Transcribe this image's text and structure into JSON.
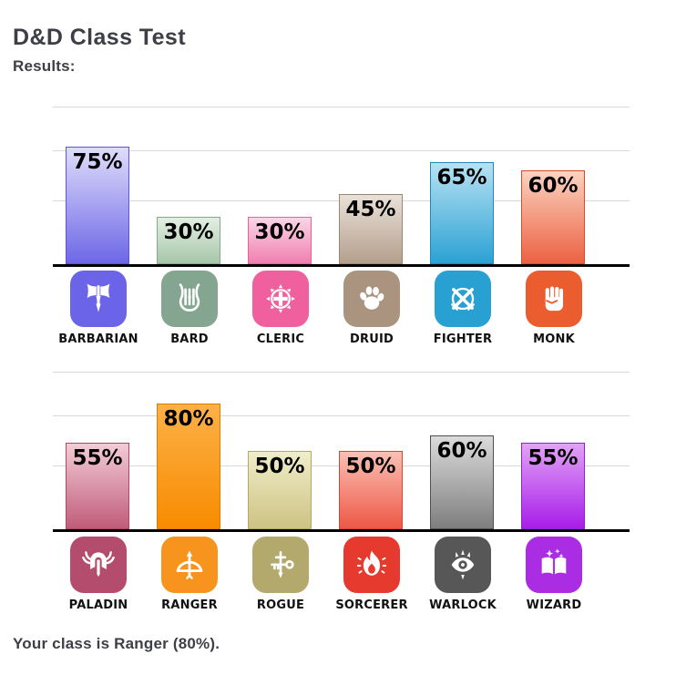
{
  "header": {
    "title": "D&D Class Test",
    "results_label": "Results:"
  },
  "footer": {
    "conclusion": "Your class is Ranger (80%)."
  },
  "theme": {
    "text_dark": "#3e3e47",
    "label_black": "#111111",
    "gridline": "#d8d8d8",
    "axis_line": "#000000",
    "background": "#ffffff"
  },
  "chart_data": [
    {
      "type": "bar",
      "group": "classes-a",
      "categories": [
        "BARBARIAN",
        "BARD",
        "CLERIC",
        "DRUID",
        "FIGHTER",
        "MONK"
      ],
      "values": [
        75,
        30,
        30,
        45,
        65,
        60
      ],
      "value_labels": [
        "75%",
        "30%",
        "30%",
        "45%",
        "65%",
        "60%"
      ],
      "unit": "percent",
      "ylim": [
        0,
        100
      ],
      "grid": true,
      "gridline_values": [
        40,
        72,
        100
      ],
      "legend": "none",
      "icons": [
        "double-axe-icon",
        "lyre-icon",
        "holy-cross-icon",
        "paw-icon",
        "crossed-swords-icon",
        "fist-icon"
      ],
      "icon_colors": [
        "#6b63e8",
        "#84a690",
        "#f0609f",
        "#aa9480",
        "#29a0d2",
        "#eb5c2e"
      ],
      "bar_colors_top": [
        "#dfddfa",
        "#e3efe1",
        "#fad6e6",
        "#e9e1d9",
        "#b7e2f3",
        "#fbd3c1"
      ],
      "bar_colors_bottom": [
        "#6d67e7",
        "#a6c6aa",
        "#f07fb1",
        "#b49f8c",
        "#2ba1d3",
        "#ec6142"
      ],
      "bar_border_colors": [
        "#5d57cf",
        "#87a88e",
        "#e9619c",
        "#9b8673",
        "#2187b6",
        "#d34e2e"
      ]
    },
    {
      "type": "bar",
      "group": "classes-b",
      "categories": [
        "PALADIN",
        "RANGER",
        "ROGUE",
        "SORCERER",
        "WARLOCK",
        "WIZARD"
      ],
      "values": [
        55,
        80,
        50,
        50,
        60,
        55
      ],
      "value_labels": [
        "55%",
        "80%",
        "50%",
        "50%",
        "60%",
        "55%"
      ],
      "unit": "percent",
      "ylim": [
        0,
        100
      ],
      "grid": true,
      "gridline_values": [
        40,
        72,
        100
      ],
      "legend": "none",
      "icons": [
        "winged-helmet-icon",
        "bow-arrow-icon",
        "key-dagger-icon",
        "flame-icon",
        "eye-icon",
        "spellbook-icon"
      ],
      "icon_colors": [
        "#b44d6d",
        "#f7941e",
        "#b3a96c",
        "#e63a2e",
        "#575757",
        "#aa2ce3"
      ],
      "bar_colors_top": [
        "#f3ccd8",
        "#fcb148",
        "#f0edca",
        "#fac0b5",
        "#dbdbdb",
        "#e2a3f6"
      ],
      "bar_colors_bottom": [
        "#c05c7a",
        "#f88b00",
        "#cdc383",
        "#ed5846",
        "#7e7e7e",
        "#a81de9"
      ],
      "bar_border_colors": [
        "#a94a65",
        "#df7c00",
        "#b2a867",
        "#d64433",
        "#4f4f4f",
        "#8e25cc"
      ]
    }
  ]
}
